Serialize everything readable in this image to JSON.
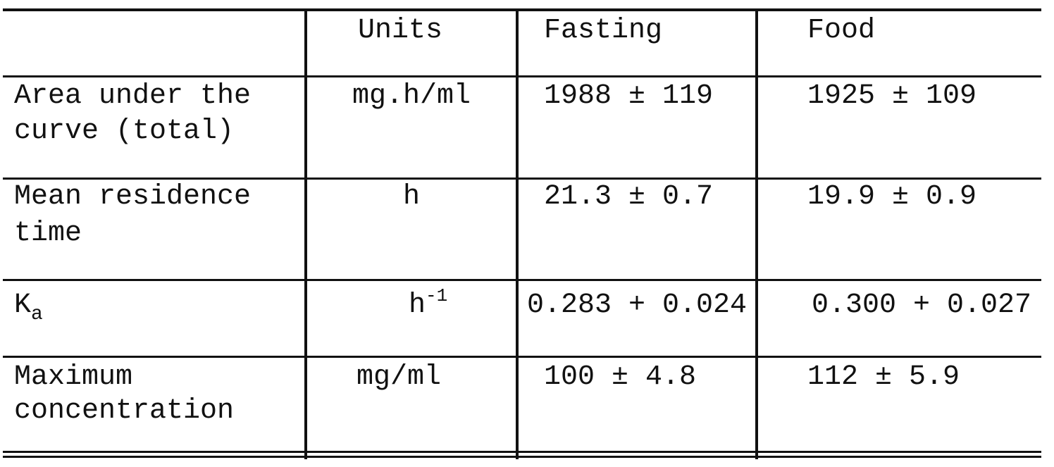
{
  "table": {
    "headers": {
      "param": "",
      "units": "Units",
      "fasting": "Fasting",
      "food": "Food"
    },
    "rows": [
      {
        "param_line1": "Area under the",
        "param_line2": "curve (total)",
        "units": "mg.h/ml",
        "fasting": "1988 ± 119",
        "food": "1925 ± 109"
      },
      {
        "param_line1": "Mean residence",
        "param_line2": "time",
        "units": "h",
        "fasting": "21.3 ± 0.7",
        "food": "19.9 ± 0.9"
      },
      {
        "param_main": "K",
        "param_sub": "a",
        "units_main": "h",
        "units_sup": "-1",
        "fasting": "0.283 + 0.024",
        "food": "0.300 + 0.027"
      },
      {
        "param_line1": "Maximum",
        "param_line2": "concentration",
        "units": "mg/ml",
        "fasting": "100 ± 4.8",
        "food": "112 ± 5.9"
      }
    ]
  }
}
